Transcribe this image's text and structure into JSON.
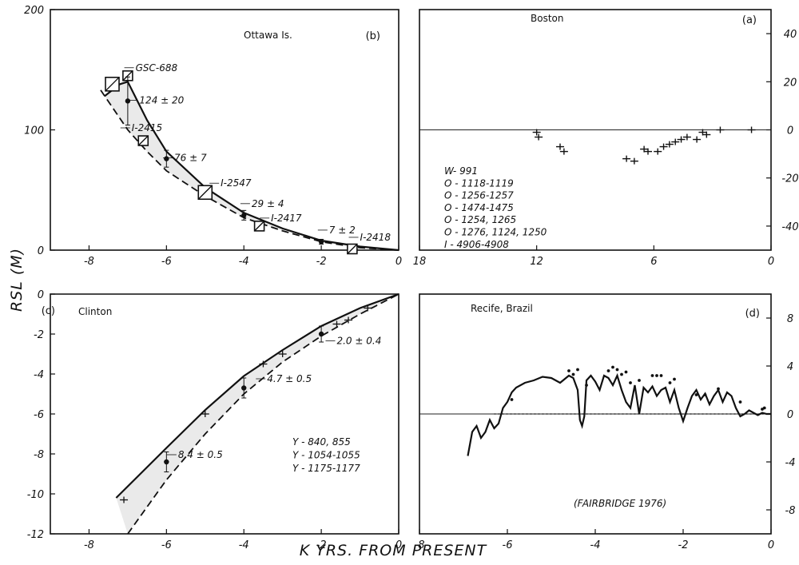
{
  "figure": {
    "ylabel": "RSL (M)",
    "xlabel": "K YRS. FROM PRESENT"
  },
  "chart_data": [
    {
      "id": "b",
      "type": "line",
      "title": "Ottawa Is.",
      "panel_label": "(b)",
      "xlim": [
        -9,
        0
      ],
      "ylim": [
        0,
        200
      ],
      "xticks": [
        -8,
        -6,
        -4,
        -2,
        0
      ],
      "yticks": [
        0,
        100,
        200
      ],
      "series": [
        {
          "style": "solid",
          "x": [
            -7.6,
            -7.2,
            -7.0,
            -6.5,
            -6.0,
            -5.0,
            -4.0,
            -3.0,
            -2.0,
            -1.0,
            0.0
          ],
          "y": [
            128,
            138,
            140,
            108,
            82,
            52,
            31,
            18,
            8,
            3,
            0
          ]
        },
        {
          "style": "dashed",
          "x": [
            -7.7,
            -7.0,
            -6.5,
            -6.0,
            -5.0,
            -4.0,
            -3.0,
            -2.0,
            -1.0,
            0.0
          ],
          "y": [
            133,
            100,
            82,
            66,
            45,
            27,
            16,
            7,
            2,
            0
          ]
        }
      ],
      "boxes": [
        {
          "x": -7.4,
          "y": 138,
          "size": "large"
        },
        {
          "x": -7.0,
          "y": 145,
          "size": "small"
        },
        {
          "x": -6.6,
          "y": 91,
          "size": "small"
        },
        {
          "x": -5.0,
          "y": 48,
          "size": "large"
        },
        {
          "x": -3.6,
          "y": 20,
          "size": "small"
        },
        {
          "x": -1.2,
          "y": 1,
          "size": "small"
        }
      ],
      "points": [
        {
          "x": -7.0,
          "y": 124,
          "err": 20
        },
        {
          "x": -6.0,
          "y": 76,
          "err": 7
        },
        {
          "x": -4.0,
          "y": 29,
          "err": 4
        },
        {
          "x": -2.0,
          "y": 7,
          "err": 2
        }
      ],
      "annotations": [
        {
          "text": "GSC-688",
          "x": -6.8,
          "y": 149
        },
        {
          "text": "124 ± 20",
          "x": -6.7,
          "y": 122
        },
        {
          "text": "I-2415",
          "x": -6.9,
          "y": 99
        },
        {
          "text": "76 ± 7",
          "x": -5.8,
          "y": 74
        },
        {
          "text": "I-2547",
          "x": -4.6,
          "y": 53
        },
        {
          "text": "29 ± 4",
          "x": -3.8,
          "y": 36
        },
        {
          "text": "I-2417",
          "x": -3.3,
          "y": 24
        },
        {
          "text": "7 ± 2",
          "x": -1.8,
          "y": 14
        },
        {
          "text": "I-2418",
          "x": -1.0,
          "y": 8
        }
      ]
    },
    {
      "id": "a",
      "type": "scatter",
      "title": "Boston",
      "panel_label": "(a)",
      "xlim": [
        18,
        0
      ],
      "ylim": [
        -50,
        50
      ],
      "xticks": [
        18,
        12,
        6,
        0
      ],
      "yticks": [
        -40,
        -20,
        0,
        20,
        40
      ],
      "yaxis_side": "right",
      "zero_line": true,
      "points": [
        {
          "x": 12.0,
          "y": -1
        },
        {
          "x": 11.9,
          "y": -3
        },
        {
          "x": 10.8,
          "y": -7
        },
        {
          "x": 10.6,
          "y": -9
        },
        {
          "x": 7.4,
          "y": -12
        },
        {
          "x": 7.0,
          "y": -13
        },
        {
          "x": 6.5,
          "y": -8
        },
        {
          "x": 6.3,
          "y": -9
        },
        {
          "x": 5.8,
          "y": -9
        },
        {
          "x": 5.5,
          "y": -7
        },
        {
          "x": 5.2,
          "y": -6
        },
        {
          "x": 4.9,
          "y": -5
        },
        {
          "x": 4.6,
          "y": -4
        },
        {
          "x": 4.3,
          "y": -3
        },
        {
          "x": 3.8,
          "y": -4
        },
        {
          "x": 3.5,
          "y": -1
        },
        {
          "x": 3.3,
          "y": -2
        },
        {
          "x": 2.6,
          "y": 0
        },
        {
          "x": 1.0,
          "y": 0
        }
      ],
      "legend_lines": [
        "W- 991",
        "O - 1118-1119",
        "O - 1256-1257",
        "O - 1474-1475",
        "O - 1254, 1265",
        "O - 1276, 1124, 1250",
        "I - 4906-4908"
      ]
    },
    {
      "id": "c",
      "type": "line",
      "title": "Clinton",
      "panel_label": "(c)",
      "xlim": [
        -9,
        0
      ],
      "ylim": [
        -12,
        0
      ],
      "xticks": [
        -8,
        -6,
        -4,
        -2,
        0
      ],
      "yticks": [
        -12,
        -10,
        -8,
        -6,
        -4,
        -2,
        0
      ],
      "zero_line": true,
      "series": [
        {
          "style": "solid",
          "x": [
            -7.3,
            -6.0,
            -5.0,
            -4.0,
            -3.0,
            -2.0,
            -1.0,
            0.0
          ],
          "y": [
            -10.2,
            -7.7,
            -5.8,
            -4.1,
            -2.8,
            -1.6,
            -0.7,
            0.0
          ]
        },
        {
          "style": "dashed",
          "x": [
            -7.0,
            -6.0,
            -5.0,
            -4.0,
            -3.0,
            -2.0,
            -1.0,
            0.0
          ],
          "y": [
            -12.0,
            -9.3,
            -7.0,
            -5.0,
            -3.4,
            -2.1,
            -1.0,
            0.0
          ]
        }
      ],
      "points": [
        {
          "x": -6.0,
          "y": -8.4,
          "err": 0.5
        },
        {
          "x": -4.0,
          "y": -4.7,
          "err": 0.5
        },
        {
          "x": -2.0,
          "y": -2.0,
          "err": 0.4
        }
      ],
      "crosses": [
        {
          "x": -7.1,
          "y": -10.3
        },
        {
          "x": -5.0,
          "y": -6.0
        },
        {
          "x": -3.5,
          "y": -3.5
        },
        {
          "x": -3.0,
          "y": -3.0
        },
        {
          "x": -1.6,
          "y": -1.5
        },
        {
          "x": -1.3,
          "y": -1.3
        },
        {
          "x": -0.8,
          "y": -0.7
        }
      ],
      "annotations": [
        {
          "text": "8.4 ± 0.5",
          "x": -5.7,
          "y": -8.2
        },
        {
          "text": "4.7 ± 0.5",
          "x": -3.4,
          "y": -4.4
        },
        {
          "text": "2.0 ± 0.4",
          "x": -1.6,
          "y": -2.5
        }
      ],
      "legend_lines": [
        "Y - 840, 855",
        "Y - 1054-1055",
        "Y - 1175-1177"
      ]
    },
    {
      "id": "d",
      "type": "line",
      "title": "Recife, Brazil",
      "panel_label": "(d)",
      "xlim": [
        -8,
        0
      ],
      "ylim": [
        -10,
        10
      ],
      "xticks": [
        -8,
        -6,
        -4,
        -2,
        0
      ],
      "yticks": [
        -8,
        -4,
        0,
        4,
        8
      ],
      "yaxis_side": "right",
      "zero_line": true,
      "source_note": "(FAIRBRIDGE 1976)",
      "series": [
        {
          "style": "solid",
          "x": [
            -6.9,
            -6.8,
            -6.7,
            -6.6,
            -6.5,
            -6.4,
            -6.3,
            -6.2,
            -6.1,
            -6.0,
            -5.9,
            -5.8,
            -5.6,
            -5.4,
            -5.2,
            -5.0,
            -4.8,
            -4.6,
            -4.5,
            -4.4,
            -4.35,
            -4.3,
            -4.25,
            -4.2,
            -4.1,
            -4.0,
            -3.9,
            -3.8,
            -3.7,
            -3.6,
            -3.5,
            -3.4,
            -3.3,
            -3.2,
            -3.1,
            -3.0,
            -2.9,
            -2.8,
            -2.7,
            -2.6,
            -2.5,
            -2.4,
            -2.3,
            -2.2,
            -2.1,
            -2.0,
            -1.9,
            -1.8,
            -1.7,
            -1.6,
            -1.5,
            -1.4,
            -1.3,
            -1.2,
            -1.1,
            -1.0,
            -0.9,
            -0.8,
            -0.7,
            -0.6,
            -0.5,
            -0.4,
            -0.3,
            -0.2,
            -0.1,
            0.0
          ],
          "y": [
            -3.5,
            -1.5,
            -1.0,
            -2.0,
            -1.5,
            -0.5,
            -1.2,
            -0.8,
            0.5,
            1.0,
            1.8,
            2.2,
            2.6,
            2.8,
            3.1,
            3.0,
            2.6,
            3.2,
            3.0,
            2.0,
            -0.5,
            -1.0,
            -0.2,
            2.8,
            3.2,
            2.7,
            2.0,
            3.2,
            3.0,
            2.4,
            3.2,
            2.0,
            1.0,
            0.5,
            2.4,
            0.0,
            2.2,
            1.8,
            2.3,
            1.5,
            2.0,
            2.2,
            1.0,
            2.0,
            0.5,
            -0.6,
            0.5,
            1.5,
            2.0,
            1.2,
            1.7,
            0.8,
            1.5,
            2.0,
            1.0,
            1.8,
            1.5,
            0.5,
            -0.2,
            0.0,
            0.3,
            0.1,
            -0.1,
            0.1,
            0.0,
            0.0
          ]
        },
        {
          "style": "dotted",
          "x": [
            -6.3,
            0.0
          ],
          "y": [
            0.0,
            0.0
          ]
        }
      ],
      "dots": [
        {
          "x": -5.9,
          "y": 1.2
        },
        {
          "x": -4.6,
          "y": 3.6
        },
        {
          "x": -4.5,
          "y": 3.3
        },
        {
          "x": -4.4,
          "y": 3.7
        },
        {
          "x": -4.2,
          "y": 2.4
        },
        {
          "x": -3.7,
          "y": 3.6
        },
        {
          "x": -3.6,
          "y": 3.9
        },
        {
          "x": -3.5,
          "y": 3.7
        },
        {
          "x": -3.4,
          "y": 3.3
        },
        {
          "x": -3.3,
          "y": 3.5
        },
        {
          "x": -3.2,
          "y": 2.6
        },
        {
          "x": -3.0,
          "y": 2.8
        },
        {
          "x": -2.7,
          "y": 3.2
        },
        {
          "x": -2.6,
          "y": 3.2
        },
        {
          "x": -2.5,
          "y": 3.2
        },
        {
          "x": -2.3,
          "y": 2.6
        },
        {
          "x": -2.2,
          "y": 2.9
        },
        {
          "x": -1.7,
          "y": 1.6
        },
        {
          "x": -1.5,
          "y": 1.6
        },
        {
          "x": -1.2,
          "y": 2.1
        },
        {
          "x": -0.7,
          "y": 1.0
        },
        {
          "x": -0.2,
          "y": 0.4
        },
        {
          "x": -0.15,
          "y": 0.5
        }
      ]
    }
  ]
}
